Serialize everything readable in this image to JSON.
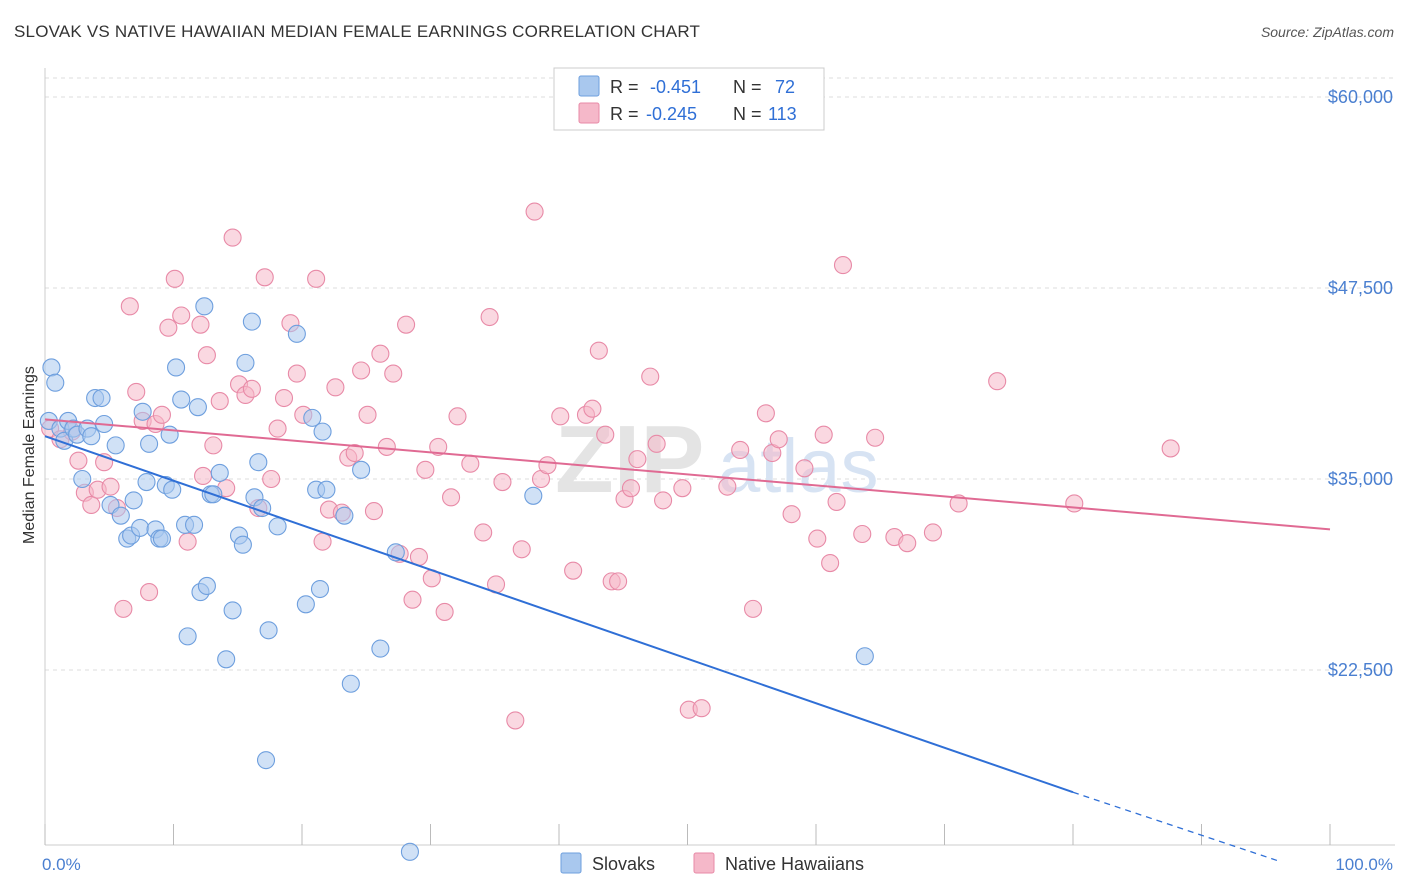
{
  "title": "SLOVAK VS NATIVE HAWAIIAN MEDIAN FEMALE EARNINGS CORRELATION CHART",
  "source": "Source: ZipAtlas.com",
  "watermark": {
    "zip": "ZIP",
    "atlas": "atlas"
  },
  "colors": {
    "blue_fill": "#a9c8ee",
    "blue_stroke": "#6e9fde",
    "blue_line": "#2f6fd6",
    "pink_fill": "#f5b8c9",
    "pink_stroke": "#e88aa7",
    "pink_line": "#e06a93",
    "grid": "#dddddd",
    "tick_text": "#4a7fd0"
  },
  "legend": {
    "rows": [
      {
        "series": "Slovaks",
        "r_label": "R =",
        "r_value": "-0.451",
        "n_label": "N =",
        "n_value": "72"
      },
      {
        "series": "Native Hawaiians",
        "r_label": "R =",
        "r_value": "-0.245",
        "n_label": "N =",
        "n_value": "113"
      }
    ]
  },
  "chart_data": {
    "type": "scatter",
    "title": "SLOVAK VS NATIVE HAWAIIAN MEDIAN FEMALE EARNINGS CORRELATION CHART",
    "xlabel": "",
    "ylabel": "Median Female Earnings",
    "xlim": [
      0,
      100
    ],
    "ylim": [
      10000,
      62000
    ],
    "y_ticks": [
      {
        "value": 60000,
        "label": "$60,000"
      },
      {
        "value": 47500,
        "label": "$47,500"
      },
      {
        "value": 35000,
        "label": "$35,000"
      },
      {
        "value": 22500,
        "label": "$22,500"
      }
    ],
    "x_ticks": [
      {
        "value": 0,
        "label": "0.0%"
      },
      {
        "value": 100,
        "label": "100.0%"
      }
    ],
    "grid": true,
    "legend_position": "top-center",
    "series": [
      {
        "name": "Slovaks",
        "color": "blue",
        "trend": {
          "x_start": 0,
          "y_start": 37800,
          "x_solid_end": 80,
          "y_solid_end": 14500,
          "x_end": 96,
          "y_end": 10000
        },
        "points": [
          [
            0.3,
            38800
          ],
          [
            0.5,
            42300
          ],
          [
            0.8,
            41300
          ],
          [
            1.2,
            38300
          ],
          [
            1.5,
            37500
          ],
          [
            1.8,
            38800
          ],
          [
            2.2,
            38300
          ],
          [
            2.5,
            37900
          ],
          [
            2.9,
            35000
          ],
          [
            3.3,
            38300
          ],
          [
            3.6,
            37800
          ],
          [
            3.9,
            40300
          ],
          [
            4.4,
            40300
          ],
          [
            4.6,
            38600
          ],
          [
            5.1,
            33300
          ],
          [
            5.5,
            37200
          ],
          [
            5.9,
            32600
          ],
          [
            6.4,
            31100
          ],
          [
            6.7,
            31300
          ],
          [
            6.9,
            33600
          ],
          [
            7.4,
            31800
          ],
          [
            7.6,
            39400
          ],
          [
            7.9,
            34800
          ],
          [
            8.1,
            37300
          ],
          [
            8.6,
            31700
          ],
          [
            8.9,
            31100
          ],
          [
            9.1,
            31100
          ],
          [
            9.4,
            34600
          ],
          [
            9.7,
            37900
          ],
          [
            9.9,
            34300
          ],
          [
            10.2,
            42300
          ],
          [
            10.6,
            40200
          ],
          [
            10.9,
            32000
          ],
          [
            11.1,
            24700
          ],
          [
            11.6,
            32000
          ],
          [
            11.9,
            39700
          ],
          [
            12.1,
            27600
          ],
          [
            12.4,
            46300
          ],
          [
            12.6,
            28000
          ],
          [
            12.9,
            34000
          ],
          [
            13.1,
            34000
          ],
          [
            13.6,
            35400
          ],
          [
            14.1,
            23200
          ],
          [
            14.6,
            26400
          ],
          [
            15.1,
            31300
          ],
          [
            15.4,
            30700
          ],
          [
            15.6,
            42600
          ],
          [
            16.1,
            45300
          ],
          [
            16.3,
            33800
          ],
          [
            16.6,
            36100
          ],
          [
            16.9,
            33100
          ],
          [
            17.2,
            16600
          ],
          [
            17.4,
            25100
          ],
          [
            18.1,
            31900
          ],
          [
            19.6,
            44500
          ],
          [
            20.3,
            26800
          ],
          [
            20.8,
            39000
          ],
          [
            21.1,
            34300
          ],
          [
            21.4,
            27800
          ],
          [
            21.6,
            38100
          ],
          [
            21.9,
            34300
          ],
          [
            23.3,
            32600
          ],
          [
            23.8,
            21600
          ],
          [
            24.6,
            35600
          ],
          [
            26.1,
            23900
          ],
          [
            27.3,
            30200
          ],
          [
            28.4,
            10600
          ],
          [
            38.0,
            33900
          ],
          [
            63.8,
            23400
          ]
        ]
      },
      {
        "name": "Native Hawaiians",
        "color": "pink",
        "trend": {
          "x_start": 0,
          "y_start": 38900,
          "x_end": 100,
          "y_end": 31700
        },
        "points": [
          [
            0.4,
            38300
          ],
          [
            1.2,
            37600
          ],
          [
            2.1,
            38100
          ],
          [
            2.6,
            36200
          ],
          [
            3.1,
            34100
          ],
          [
            3.6,
            33300
          ],
          [
            4.1,
            34300
          ],
          [
            4.6,
            36100
          ],
          [
            5.1,
            34500
          ],
          [
            5.6,
            33100
          ],
          [
            6.1,
            26500
          ],
          [
            6.6,
            46300
          ],
          [
            7.1,
            40700
          ],
          [
            7.6,
            38800
          ],
          [
            8.1,
            27600
          ],
          [
            8.6,
            38600
          ],
          [
            9.1,
            39200
          ],
          [
            9.6,
            44900
          ],
          [
            10.1,
            48100
          ],
          [
            10.6,
            45700
          ],
          [
            11.1,
            30900
          ],
          [
            12.1,
            45100
          ],
          [
            12.6,
            43100
          ],
          [
            13.1,
            37200
          ],
          [
            13.6,
            40100
          ],
          [
            14.1,
            34400
          ],
          [
            14.6,
            50800
          ],
          [
            15.1,
            41200
          ],
          [
            15.6,
            40500
          ],
          [
            16.1,
            40900
          ],
          [
            16.6,
            33100
          ],
          [
            17.1,
            48200
          ],
          [
            17.6,
            35000
          ],
          [
            18.1,
            38300
          ],
          [
            18.6,
            40300
          ],
          [
            19.1,
            45200
          ],
          [
            19.6,
            41900
          ],
          [
            20.1,
            39200
          ],
          [
            21.1,
            48100
          ],
          [
            21.6,
            30900
          ],
          [
            22.1,
            33000
          ],
          [
            22.6,
            41000
          ],
          [
            23.1,
            32800
          ],
          [
            23.6,
            36400
          ],
          [
            24.1,
            36700
          ],
          [
            24.6,
            42100
          ],
          [
            25.1,
            39200
          ],
          [
            25.6,
            32900
          ],
          [
            26.1,
            43200
          ],
          [
            27.1,
            41900
          ],
          [
            27.6,
            30100
          ],
          [
            28.1,
            45100
          ],
          [
            28.6,
            27100
          ],
          [
            29.1,
            29900
          ],
          [
            29.6,
            35600
          ],
          [
            30.1,
            28500
          ],
          [
            31.1,
            26300
          ],
          [
            31.6,
            33800
          ],
          [
            32.1,
            39100
          ],
          [
            33.1,
            36000
          ],
          [
            34.1,
            31500
          ],
          [
            34.6,
            45600
          ],
          [
            35.1,
            28100
          ],
          [
            35.6,
            34800
          ],
          [
            36.6,
            19200
          ],
          [
            37.1,
            30400
          ],
          [
            38.1,
            52500
          ],
          [
            38.6,
            35000
          ],
          [
            39.1,
            35900
          ],
          [
            40.1,
            39100
          ],
          [
            41.1,
            29000
          ],
          [
            42.1,
            39200
          ],
          [
            42.6,
            39600
          ],
          [
            43.1,
            43400
          ],
          [
            43.6,
            37900
          ],
          [
            44.1,
            28300
          ],
          [
            44.6,
            28300
          ],
          [
            45.1,
            33700
          ],
          [
            45.6,
            34400
          ],
          [
            46.1,
            36300
          ],
          [
            47.1,
            41700
          ],
          [
            47.6,
            37300
          ],
          [
            48.1,
            33600
          ],
          [
            49.6,
            34400
          ],
          [
            50.1,
            19900
          ],
          [
            51.1,
            20000
          ],
          [
            53.1,
            34500
          ],
          [
            54.1,
            36900
          ],
          [
            55.1,
            26500
          ],
          [
            56.1,
            39300
          ],
          [
            56.6,
            36700
          ],
          [
            57.1,
            37600
          ],
          [
            58.1,
            32700
          ],
          [
            59.1,
            35700
          ],
          [
            60.1,
            31100
          ],
          [
            61.1,
            29500
          ],
          [
            61.6,
            33500
          ],
          [
            62.1,
            49000
          ],
          [
            63.6,
            31400
          ],
          [
            64.6,
            37700
          ],
          [
            66.1,
            31200
          ],
          [
            67.1,
            30800
          ],
          [
            69.1,
            31500
          ],
          [
            71.1,
            33400
          ],
          [
            74.1,
            41400
          ],
          [
            80.1,
            33400
          ],
          [
            87.6,
            37000
          ],
          [
            60.6,
            37900
          ],
          [
            30.6,
            37100
          ],
          [
            26.6,
            37100
          ],
          [
            12.3,
            35200
          ]
        ]
      }
    ]
  }
}
